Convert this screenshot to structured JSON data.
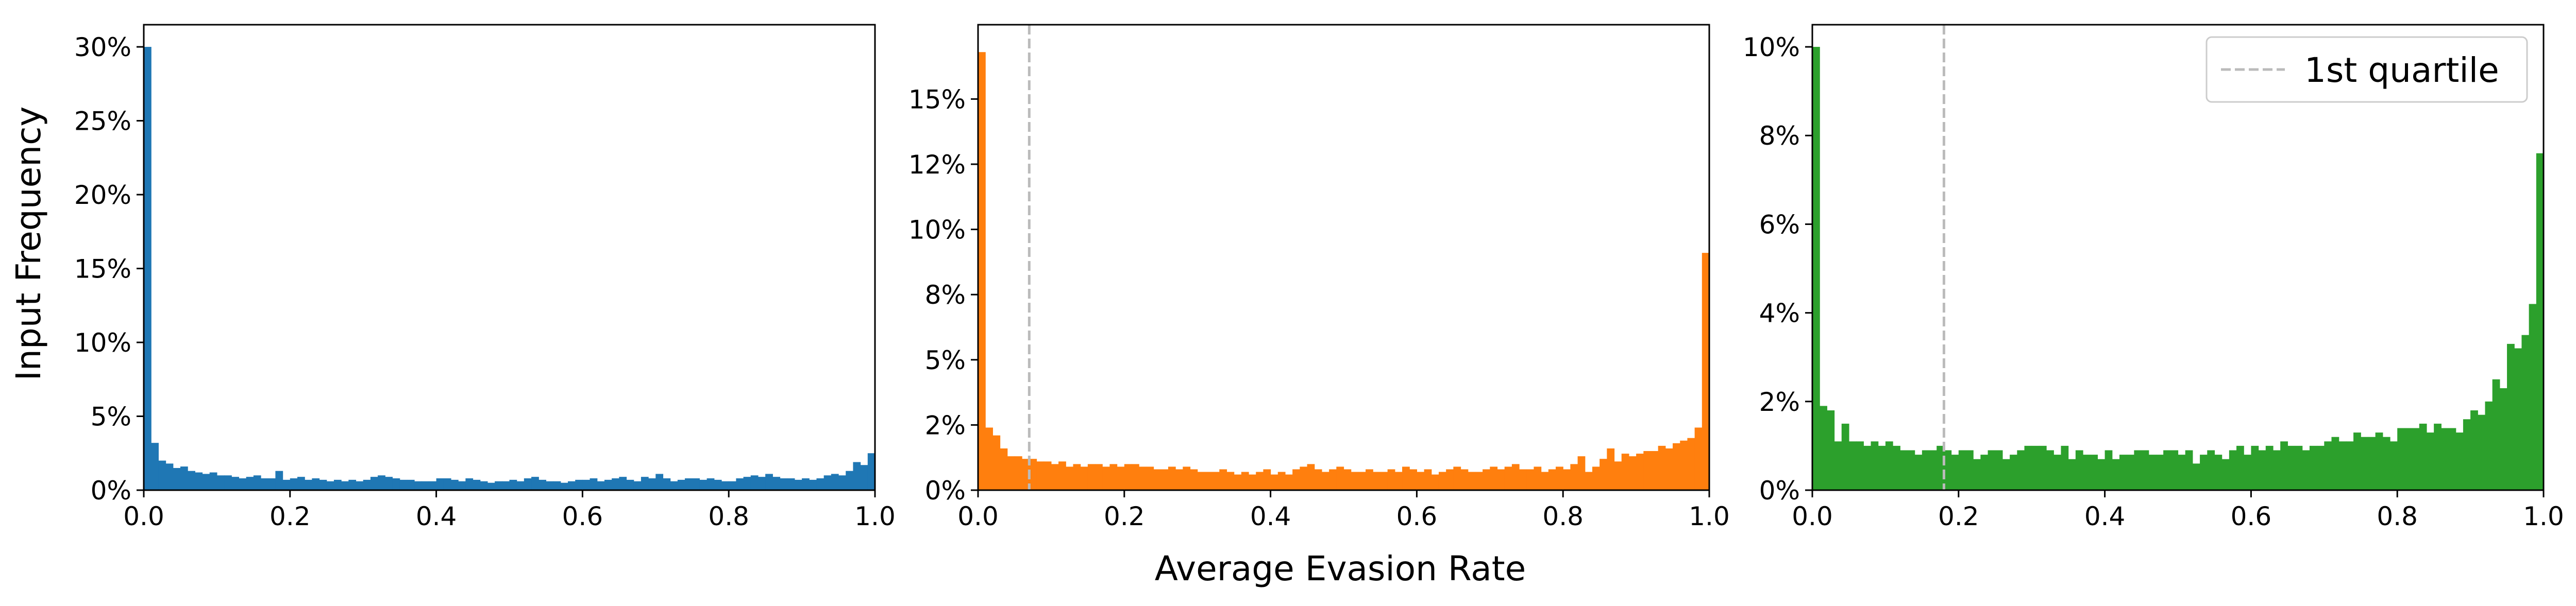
{
  "figure": {
    "ylabel": "Input Frequency",
    "xlabel": "Average Evasion Rate"
  },
  "chart_data": [
    {
      "type": "bar",
      "color": "#1f77b4",
      "xlim": [
        0.0,
        1.0
      ],
      "ylim": [
        0,
        31.5
      ],
      "x_ticks": [
        0.0,
        0.2,
        0.4,
        0.6,
        0.8,
        1.0
      ],
      "x_tick_labels": [
        "0.0",
        "0.2",
        "0.4",
        "0.6",
        "0.8",
        "1.0"
      ],
      "y_ticks": [
        0,
        5,
        10,
        15,
        20,
        25,
        30
      ],
      "y_tick_labels": [
        "0%",
        "5%",
        "10%",
        "15%",
        "20%",
        "25%",
        "30%"
      ],
      "bin_width": 0.01,
      "values": [
        30.0,
        3.2,
        2.0,
        1.8,
        1.5,
        1.6,
        1.3,
        1.2,
        1.1,
        1.2,
        1.0,
        1.0,
        0.9,
        0.8,
        0.9,
        1.0,
        0.8,
        0.8,
        1.3,
        0.7,
        0.8,
        0.9,
        0.7,
        0.8,
        0.7,
        0.6,
        0.7,
        0.6,
        0.7,
        0.6,
        0.7,
        0.9,
        1.0,
        0.9,
        0.8,
        0.7,
        0.7,
        0.6,
        0.6,
        0.6,
        0.8,
        0.8,
        0.7,
        0.6,
        0.8,
        0.7,
        0.6,
        0.5,
        0.6,
        0.6,
        0.7,
        0.6,
        0.8,
        0.9,
        0.7,
        0.6,
        0.6,
        0.5,
        0.6,
        0.7,
        0.7,
        0.8,
        0.6,
        0.7,
        0.8,
        0.9,
        0.7,
        0.6,
        0.9,
        0.8,
        1.1,
        0.8,
        0.6,
        0.7,
        0.8,
        0.8,
        0.7,
        0.8,
        0.7,
        0.6,
        0.6,
        0.8,
        0.9,
        1.0,
        0.9,
        1.1,
        0.9,
        0.8,
        0.8,
        0.7,
        0.8,
        0.7,
        0.8,
        1.0,
        1.1,
        1.0,
        1.3,
        1.9,
        1.7,
        2.5
      ],
      "vlines": []
    },
    {
      "type": "bar",
      "color": "#ff7f0e",
      "xlim": [
        0.0,
        1.0
      ],
      "ylim": [
        0,
        17.85
      ],
      "x_ticks": [
        0.0,
        0.2,
        0.4,
        0.6,
        0.8,
        1.0
      ],
      "x_tick_labels": [
        "0.0",
        "0.2",
        "0.4",
        "0.6",
        "0.8",
        "1.0"
      ],
      "y_ticks": [
        0,
        2.5,
        5,
        7.5,
        10,
        12.5,
        15
      ],
      "y_tick_labels": [
        "0%",
        "2%",
        "5%",
        "8%",
        "10%",
        "12%",
        "15%"
      ],
      "bin_width": 0.01,
      "values": [
        16.8,
        2.4,
        2.1,
        1.6,
        1.3,
        1.3,
        1.2,
        1.2,
        1.1,
        1.1,
        1.0,
        1.1,
        0.9,
        1.0,
        0.9,
        1.0,
        1.0,
        0.9,
        1.0,
        0.9,
        1.0,
        1.0,
        0.9,
        0.9,
        0.8,
        0.8,
        0.9,
        0.8,
        0.9,
        0.8,
        0.7,
        0.7,
        0.7,
        0.8,
        0.7,
        0.6,
        0.7,
        0.6,
        0.7,
        0.8,
        0.6,
        0.7,
        0.6,
        0.8,
        0.9,
        1.0,
        0.8,
        0.7,
        0.8,
        0.9,
        0.8,
        0.7,
        0.7,
        0.8,
        0.7,
        0.7,
        0.8,
        0.7,
        0.9,
        0.8,
        0.7,
        0.8,
        0.6,
        0.7,
        0.8,
        0.9,
        0.8,
        0.7,
        0.7,
        0.8,
        0.9,
        0.8,
        0.9,
        1.0,
        0.8,
        0.8,
        0.9,
        0.7,
        0.8,
        0.9,
        0.8,
        1.0,
        1.3,
        0.7,
        0.9,
        1.2,
        1.6,
        1.1,
        1.4,
        1.3,
        1.4,
        1.5,
        1.5,
        1.7,
        1.6,
        1.8,
        1.9,
        2.0,
        2.4,
        9.1
      ],
      "vlines": [
        {
          "x": 0.07,
          "label": "1st quartile"
        }
      ]
    },
    {
      "type": "bar",
      "color": "#2ca02c",
      "xlim": [
        0.0,
        1.0
      ],
      "ylim": [
        0,
        10.5
      ],
      "x_ticks": [
        0.0,
        0.2,
        0.4,
        0.6,
        0.8,
        1.0
      ],
      "x_tick_labels": [
        "0.0",
        "0.2",
        "0.4",
        "0.6",
        "0.8",
        "1.0"
      ],
      "y_ticks": [
        0,
        2,
        4,
        6,
        8,
        10
      ],
      "y_tick_labels": [
        "0%",
        "2%",
        "4%",
        "6%",
        "8%",
        "10%"
      ],
      "bin_width": 0.01,
      "values": [
        10.0,
        1.9,
        1.8,
        1.1,
        1.5,
        1.1,
        1.1,
        1.0,
        1.1,
        1.0,
        1.1,
        1.0,
        0.9,
        0.9,
        0.8,
        0.9,
        0.9,
        1.0,
        0.9,
        0.8,
        0.9,
        0.9,
        0.7,
        0.8,
        0.9,
        0.9,
        0.7,
        0.8,
        0.9,
        1.0,
        1.0,
        1.0,
        0.9,
        0.8,
        1.0,
        0.7,
        0.9,
        0.8,
        0.8,
        0.7,
        0.9,
        0.7,
        0.8,
        0.8,
        0.9,
        0.9,
        0.8,
        0.8,
        0.9,
        0.9,
        0.8,
        0.9,
        0.6,
        0.8,
        0.9,
        0.8,
        0.7,
        0.9,
        1.0,
        0.8,
        1.0,
        0.9,
        1.0,
        0.9,
        1.1,
        1.0,
        1.0,
        0.9,
        1.0,
        1.0,
        1.1,
        1.2,
        1.1,
        1.1,
        1.3,
        1.2,
        1.2,
        1.3,
        1.2,
        1.1,
        1.4,
        1.4,
        1.4,
        1.5,
        1.3,
        1.5,
        1.4,
        1.4,
        1.3,
        1.6,
        1.8,
        1.7,
        2.0,
        2.5,
        2.3,
        3.3,
        3.2,
        3.5,
        4.2,
        7.6
      ],
      "vlines": [
        {
          "x": 0.18,
          "label": "1st quartile"
        }
      ]
    }
  ],
  "legend": {
    "label": "1st quartile",
    "placement": "top-right",
    "line_color": "#bbbbbb"
  }
}
